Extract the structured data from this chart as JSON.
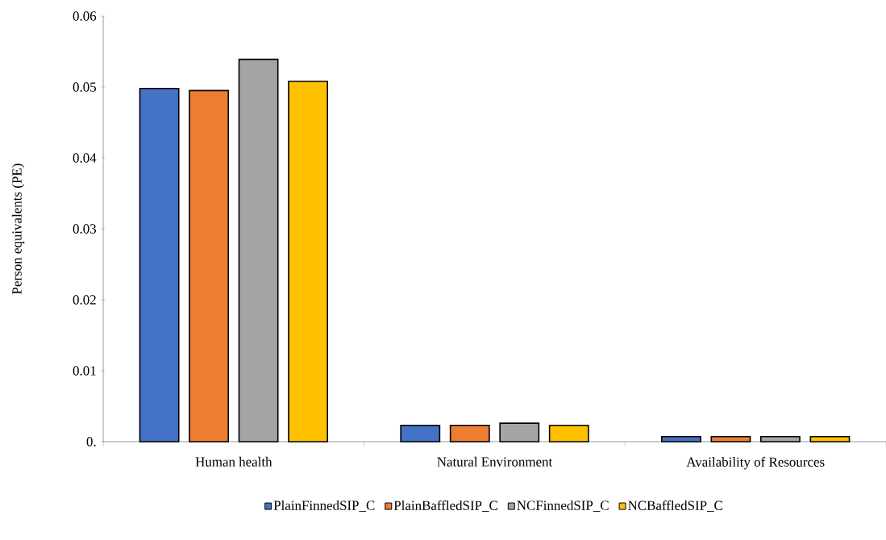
{
  "chart_data": {
    "type": "bar",
    "ylabel": "Person equivalents (PE)",
    "categories": [
      "Human health",
      "Natural Environment",
      "Availability of Resources"
    ],
    "series": [
      {
        "name": "PlainFinnedSIP_C",
        "color": "#4472c4",
        "values": [
          0.0498,
          0.0023,
          0.0007
        ]
      },
      {
        "name": "PlainBaffledSIP_C",
        "color": "#ed7d31",
        "values": [
          0.0495,
          0.0023,
          0.0007
        ]
      },
      {
        "name": "NCFinnedSIP_C",
        "color": "#a5a5a5",
        "values": [
          0.0539,
          0.0026,
          0.0007
        ]
      },
      {
        "name": "NCBaffledSIP_C",
        "color": "#ffc000",
        "values": [
          0.0508,
          0.0023,
          0.0007
        ]
      }
    ],
    "ylim": [
      0,
      0.06
    ],
    "yticks": [
      {
        "value": 0,
        "label": "0."
      },
      0.01,
      0.02,
      0.03,
      0.04,
      0.05,
      0.06
    ],
    "legend": "bottom",
    "grid": false
  }
}
